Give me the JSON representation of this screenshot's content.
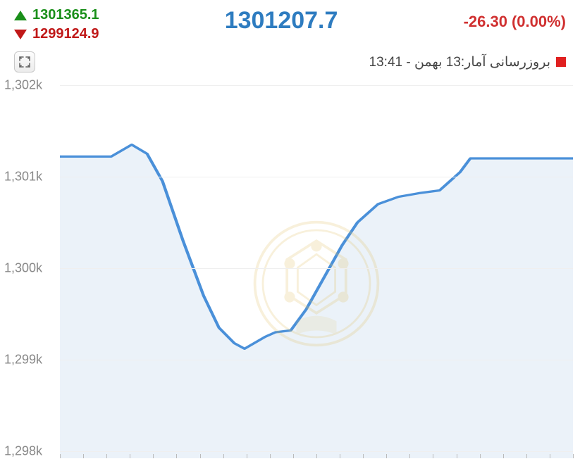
{
  "header": {
    "high": "1301365.1",
    "low": "1299124.9",
    "current": "1301207.7",
    "change": "-26.30",
    "change_pct": "(0.00%)",
    "high_color": "#1a8f1a",
    "low_color": "#c01818",
    "current_color": "#2e7cc0",
    "change_color": "#d03030",
    "pct_color": "#d03030"
  },
  "update": {
    "label": "بروزرسانی آمار:13 بهمن - 13:41",
    "status_color": "#e02020"
  },
  "chart": {
    "type": "area",
    "line_color": "#4a90d9",
    "line_width": 3,
    "fill_color": "#e8f0f8",
    "fill_opacity": 0.85,
    "grid_color": "#efefef",
    "axis_font_color": "#888888",
    "axis_fontsize": 18,
    "background_color": "#ffffff",
    "watermark_color": "#e0c060",
    "ylim": [
      1298,
      1302
    ],
    "yticks": [
      1298,
      1299,
      1300,
      1301,
      1302
    ],
    "ytick_labels": [
      "1,298k",
      "1,299k",
      "1,300k",
      "1,301k",
      "1,302k"
    ],
    "xtick_count": 23,
    "series": [
      {
        "x": 0.0,
        "y": 1301.22
      },
      {
        "x": 0.05,
        "y": 1301.22
      },
      {
        "x": 0.1,
        "y": 1301.22
      },
      {
        "x": 0.14,
        "y": 1301.35
      },
      {
        "x": 0.17,
        "y": 1301.25
      },
      {
        "x": 0.2,
        "y": 1300.95
      },
      {
        "x": 0.24,
        "y": 1300.3
      },
      {
        "x": 0.28,
        "y": 1299.7
      },
      {
        "x": 0.31,
        "y": 1299.35
      },
      {
        "x": 0.34,
        "y": 1299.18
      },
      {
        "x": 0.36,
        "y": 1299.12
      },
      {
        "x": 0.4,
        "y": 1299.25
      },
      {
        "x": 0.42,
        "y": 1299.3
      },
      {
        "x": 0.45,
        "y": 1299.32
      },
      {
        "x": 0.48,
        "y": 1299.55
      },
      {
        "x": 0.52,
        "y": 1299.95
      },
      {
        "x": 0.55,
        "y": 1300.25
      },
      {
        "x": 0.58,
        "y": 1300.5
      },
      {
        "x": 0.62,
        "y": 1300.7
      },
      {
        "x": 0.66,
        "y": 1300.78
      },
      {
        "x": 0.7,
        "y": 1300.82
      },
      {
        "x": 0.74,
        "y": 1300.85
      },
      {
        "x": 0.78,
        "y": 1301.05
      },
      {
        "x": 0.8,
        "y": 1301.2
      },
      {
        "x": 0.85,
        "y": 1301.2
      },
      {
        "x": 0.9,
        "y": 1301.2
      },
      {
        "x": 0.95,
        "y": 1301.2
      },
      {
        "x": 1.0,
        "y": 1301.2
      }
    ]
  }
}
